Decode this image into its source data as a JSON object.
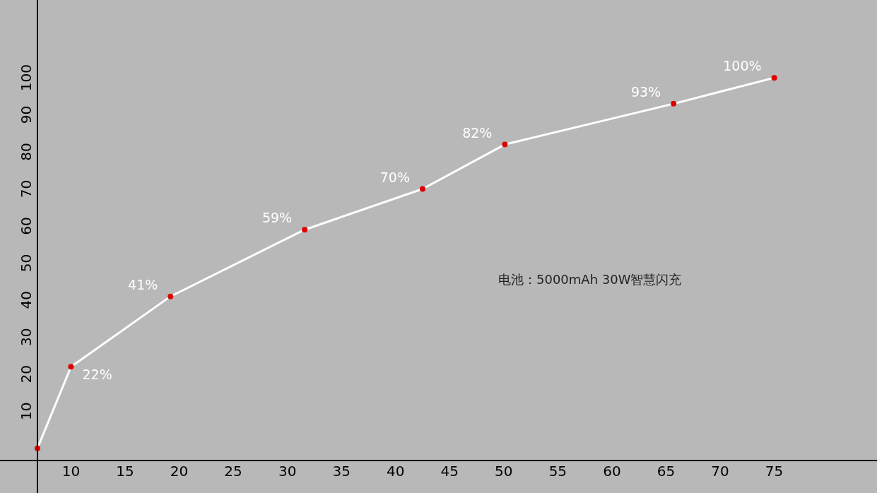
{
  "chart_data": {
    "type": "line",
    "x": [
      6.9,
      10,
      19.2,
      31.6,
      42.5,
      50.1,
      65.7,
      75
    ],
    "series": [
      {
        "color": "#ffffff",
        "values": [
          0,
          22,
          41,
          59,
          70,
          82,
          93,
          100
        ],
        "value_labels": [
          null,
          "22%",
          "41%",
          "59%",
          "70%",
          "82%",
          "93%",
          "100%"
        ]
      }
    ],
    "marker": "circle",
    "xlim": [
      6.9,
      84.5
    ],
    "ylim": [
      -3.3,
      121
    ],
    "xticks": [
      10,
      15,
      20,
      25,
      30,
      35,
      40,
      45,
      50,
      55,
      60,
      65,
      70,
      75
    ],
    "yticks": [
      10,
      20,
      30,
      40,
      50,
      60,
      70,
      80,
      90,
      100
    ],
    "annotations": [
      "电池：5000mAh 30W智慧闪充"
    ]
  }
}
